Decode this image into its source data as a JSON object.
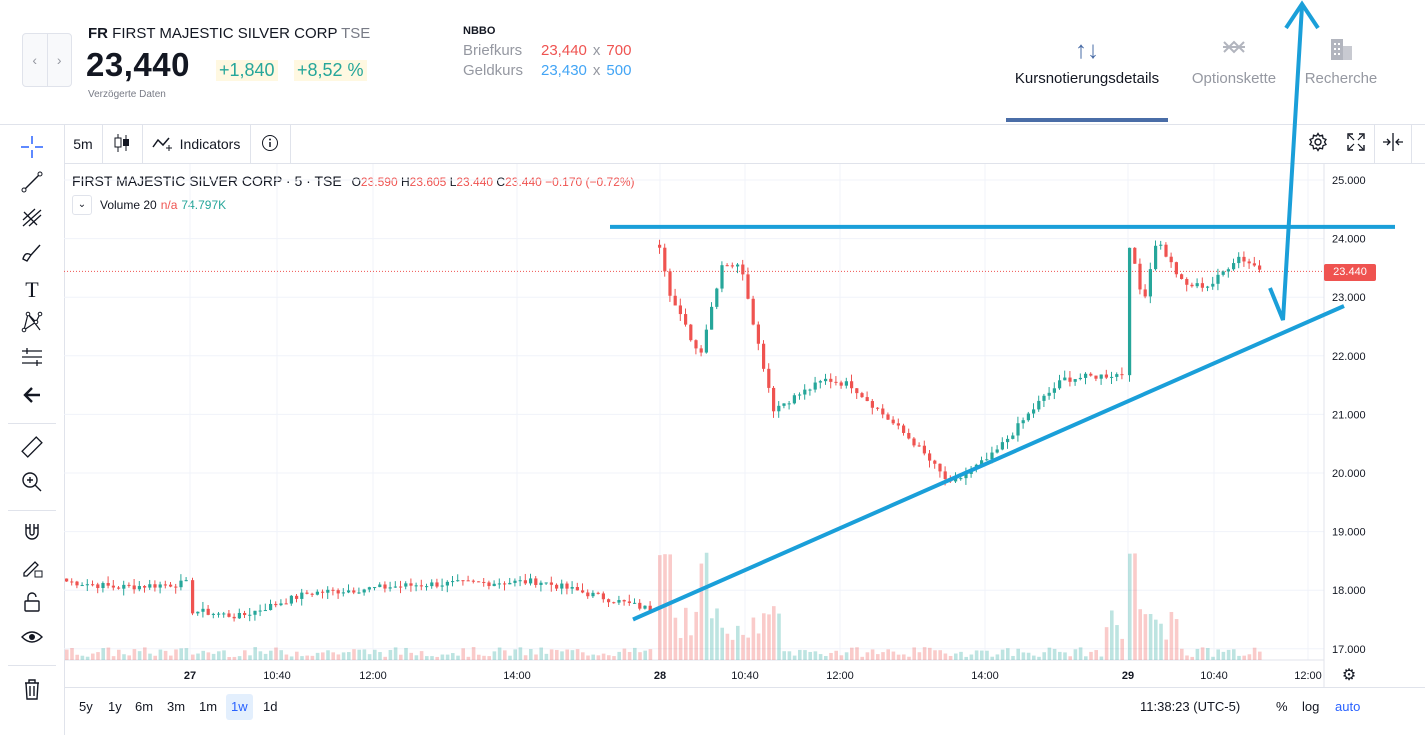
{
  "header": {
    "ticker": "FR",
    "company": "FIRST MAJESTIC SILVER CORP",
    "exchange": "TSE",
    "price": "23,440",
    "change_abs": "+1,840",
    "change_pct": "+8,52 %",
    "delayed_note": "Verzögerte Daten",
    "nav_prev": "‹",
    "nav_next": "›"
  },
  "nbbo": {
    "title": "NBBO",
    "ask_label": "Briefkurs",
    "ask_price": "23,440",
    "ask_size": "700",
    "bid_label": "Geldkurs",
    "bid_price": "23,430",
    "bid_size": "500",
    "x": "x"
  },
  "tabs": [
    {
      "label": "Kursnotierungsdetails",
      "icon": "sort-arrows-icon",
      "active": true
    },
    {
      "label": "Optionskette",
      "icon": "options-chain-icon",
      "active": false
    },
    {
      "label": "Recherche",
      "icon": "building-icon",
      "active": false
    }
  ],
  "toolbar": {
    "interval": "5m",
    "indicators": "Indicators"
  },
  "legend": {
    "title": "FIRST MAJESTIC SILVER CORP · 5 · TSE",
    "o_label": "O",
    "o": "23.590",
    "h_label": "H",
    "h": "23.605",
    "l_label": "L",
    "l": "23.440",
    "c_label": "C",
    "c": "23.440",
    "change": "−0.170 (−0.72%)",
    "volume_label": "Volume",
    "volume_len": "20",
    "volume_na": "n/a",
    "volume_value": "74.797K",
    "toggle": "⌄"
  },
  "price_axis": {
    "ticks": [
      "25.000",
      "24.000",
      "23.000",
      "22.000",
      "21.000",
      "20.000",
      "19.000",
      "18.000",
      "17.000"
    ],
    "last_price_label": "23.440"
  },
  "time_axis": {
    "labels": [
      "27",
      "10:40",
      "12:00",
      "14:00",
      "28",
      "10:40",
      "12:00",
      "14:00",
      "29",
      "10:40",
      "12:00"
    ],
    "bold": [
      "27",
      "28",
      "29"
    ]
  },
  "bottom": {
    "ranges": [
      "5y",
      "1y",
      "6m",
      "3m",
      "1m",
      "1w",
      "1d"
    ],
    "active_range": "1w",
    "clock": "11:38:23 (UTC-5)",
    "pct": "%",
    "log": "log",
    "auto": "auto"
  },
  "colors": {
    "up": "#26a69a",
    "down": "#ef5350",
    "drawing": "#1a9fd9",
    "tab_active": "#4a6da7",
    "accent": "#2962ff"
  },
  "chart_data": {
    "type": "candlestick",
    "ylim": [
      16.8,
      25.2
    ],
    "interval": "5m",
    "days": [
      {
        "day": "27",
        "range": [
          17.5,
          18.2
        ],
        "close": 17.75
      },
      {
        "day": "28",
        "open": 24.0,
        "high": 24.4,
        "low": 20.4,
        "close": 21.7
      },
      {
        "day": "29",
        "open": 23.6,
        "high": 24.3,
        "low": 22.8,
        "close": 23.44
      }
    ],
    "last_price": 23.44,
    "drawings": {
      "resistance_level": 24.2,
      "rising_trendline_from": 17.5,
      "rising_trendline_to": 22.85
    }
  }
}
